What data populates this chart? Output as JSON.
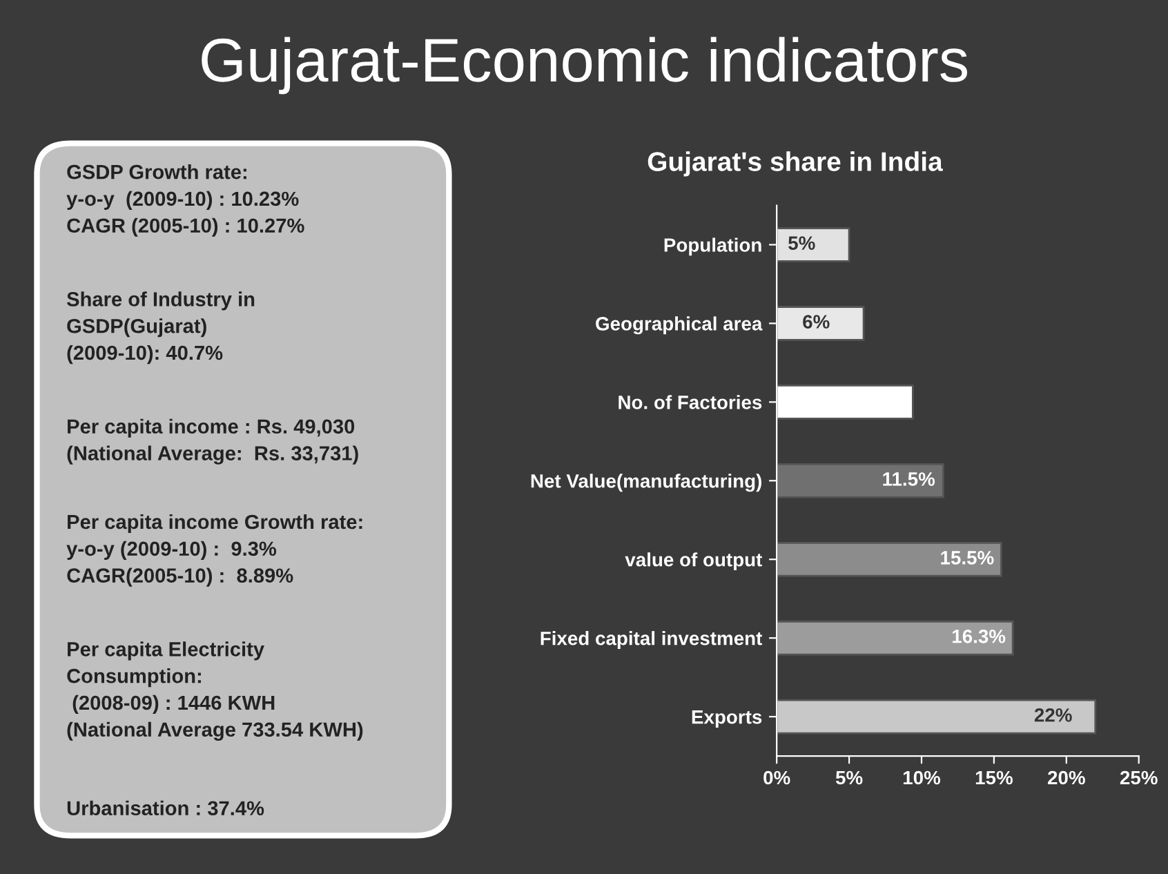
{
  "chart_data": [
    {
      "type": "other",
      "title": "Gujarat-Economic indicators",
      "annotations": [
        "GSDP Growth rate:\ny-o-y  (2009-10) : 10.23%\nCAGR (2005-10) : 10.27%",
        "Share of Industry in\nGSDP(Gujarat)\n(2009-10): 40.7%",
        "Per capita income : Rs. 49,030\n(National Average:  Rs. 33,731)",
        "Per capita income Growth rate:\ny-o-y (2009-10) :  9.3%\nCAGR(2005-10) :  8.89%",
        "Per capita Electricity\nConsumption:\n (2008-09) : 1446 KWH\n(National Average 733.54 KWH)",
        "Urbanisation : 37.4%"
      ]
    },
    {
      "type": "bar",
      "orientation": "horizontal",
      "title": "Gujarat's share in India",
      "categories": [
        "Population",
        "Geographical area",
        "No. of Factories",
        "Net Value(manufacturing)",
        "value of output",
        "Fixed capital investment",
        "Exports"
      ],
      "values": [
        5,
        6,
        9.4,
        11.5,
        15.5,
        16.3,
        22
      ],
      "colors": [
        "#e2e2e2",
        "#e8e8e8",
        "#ffffff",
        "#707070",
        "#8c8c8c",
        "#9c9c9c",
        "#c8c8c8"
      ],
      "value_labels": [
        "5%",
        "6%",
        null,
        "11.5%",
        "15.5%",
        "16.3%",
        "22%"
      ],
      "xlim": [
        0,
        25
      ],
      "xticks": [
        {
          "value": 0,
          "label": "0%"
        },
        {
          "value": 5,
          "label": "5%"
        },
        {
          "value": 10,
          "label": "10%"
        },
        {
          "value": 15,
          "label": "15%"
        },
        {
          "value": 20,
          "label": "20%"
        },
        {
          "value": 25,
          "label": "25%"
        }
      ]
    }
  ]
}
